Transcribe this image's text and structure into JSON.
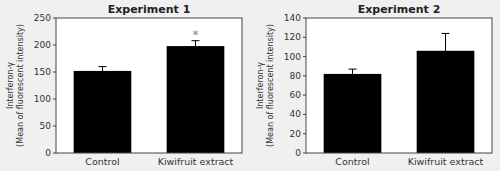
{
  "chart_data": [
    {
      "type": "bar",
      "title": "Experiment 1",
      "categories": [
        "Control",
        "Kiwifruit extract"
      ],
      "values": [
        152,
        198
      ],
      "errors": [
        8,
        10
      ],
      "color": "#000000",
      "ylim": [
        0,
        250
      ],
      "yticks": [
        0,
        50,
        100,
        150,
        200,
        250
      ],
      "ylabel": [
        "Interferon-γ",
        "(Mean of fluorescent intensity)"
      ],
      "annotations": [
        {
          "text": "*",
          "category": "Kiwifruit extract",
          "color": "#888888"
        }
      ]
    },
    {
      "type": "bar",
      "title": "Experiment 2",
      "categories": [
        "Control",
        "Kiwifruit extract"
      ],
      "values": [
        82,
        106
      ],
      "errors": [
        5,
        18
      ],
      "color": "#000000",
      "ylim": [
        0,
        140
      ],
      "yticks": [
        0,
        20,
        40,
        60,
        80,
        100,
        120,
        140
      ],
      "ylabel": [
        "Interferon-γ",
        "(Mean of fluorescent intensity)"
      ]
    }
  ]
}
